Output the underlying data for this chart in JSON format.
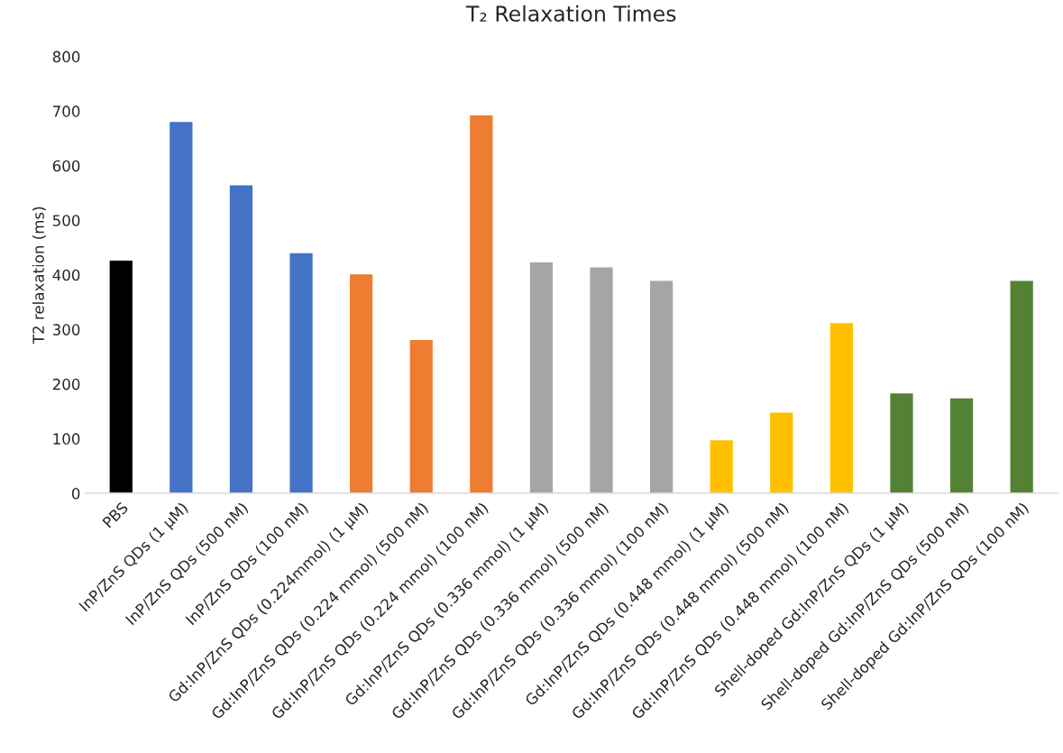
{
  "chart_data": {
    "type": "bar",
    "title": "T₂ Relaxation Times",
    "ylabel": "T2 relaxation (ms)",
    "categories": [
      "PBS",
      "InP/ZnS QDs (1 µM)",
      "InP/ZnS QDs (500 nM)",
      "InP/ZnS QDs (100 nM)",
      "Gd:InP/ZnS QDs (0.224mmol) (1 µM)",
      "Gd:InP/ZnS QDs (0.224 mmol) (500 nM)",
      "Gd:InP/ZnS QDs (0.224 mmol) (100 nM)",
      "Gd:InP/ZnS QDs (0.336 mmol) (1 µM)",
      "Gd:InP/ZnS QDs (0.336 mmol) (500 nM)",
      "Gd:InP/ZnS QDs (0.336 mmol) (100 nM)",
      "Gd:InP/ZnS QDs (0.448 mmol) (1 µM)",
      "Gd:InP/ZnS QDs (0.448 mmol) (500 nM)",
      "Gd:InP/ZnS QDs (0.448 mmol) (100 nM)",
      "Shell-doped Gd:InP/ZnS QDs (1 µM)",
      "Shell-doped Gd:InP/ZnS QDs (500 nM)",
      "Shell-doped Gd:InP/ZnS QDs (100 nM)"
    ],
    "values": [
      427,
      681,
      565,
      441,
      402,
      282,
      693,
      424,
      415,
      390,
      98,
      149,
      313,
      184,
      175,
      390
    ],
    "colors": [
      "#000000",
      "#4472c4",
      "#4472c4",
      "#4472c4",
      "#ed7d31",
      "#ed7d31",
      "#ed7d31",
      "#a5a5a5",
      "#a5a5a5",
      "#a5a5a5",
      "#ffc000",
      "#ffc000",
      "#ffc000",
      "#548235",
      "#548235",
      "#548235"
    ],
    "ylim": [
      0,
      800
    ],
    "yticks": [
      0,
      100,
      200,
      300,
      400,
      500,
      600,
      700,
      800
    ],
    "grid": false,
    "legend": false
  }
}
